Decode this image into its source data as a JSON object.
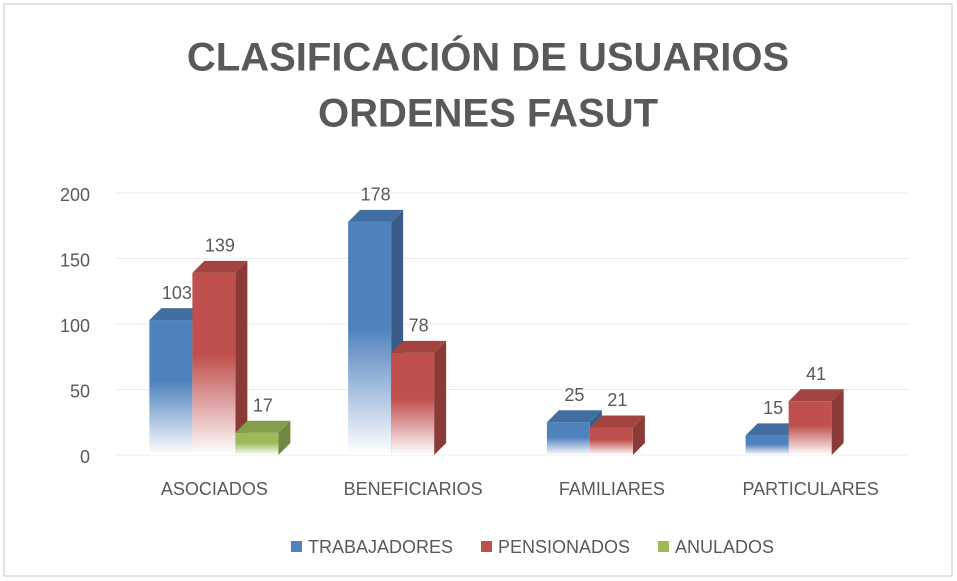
{
  "chart_data": {
    "type": "bar3d",
    "title": [
      "CLASIFICACIÓN DE USUARIOS",
      "ORDENES FASUT"
    ],
    "categories": [
      "ASOCIADOS",
      "BENEFICIARIOS",
      "FAMILIARES",
      "PARTICULARES"
    ],
    "series": [
      {
        "name": "TRABAJADORES",
        "color": "#4f81bd",
        "values": [
          103,
          178,
          25,
          15
        ]
      },
      {
        "name": "PENSIONADOS",
        "color": "#c0504d",
        "values": [
          139,
          78,
          21,
          41
        ]
      },
      {
        "name": "ANULADOS",
        "color": "#9bbb59",
        "values": [
          17,
          null,
          null,
          null
        ]
      }
    ],
    "ylim": [
      0,
      200
    ],
    "yticks": [
      0,
      50,
      100,
      150,
      200
    ],
    "grid": true,
    "legend": "bottom"
  }
}
